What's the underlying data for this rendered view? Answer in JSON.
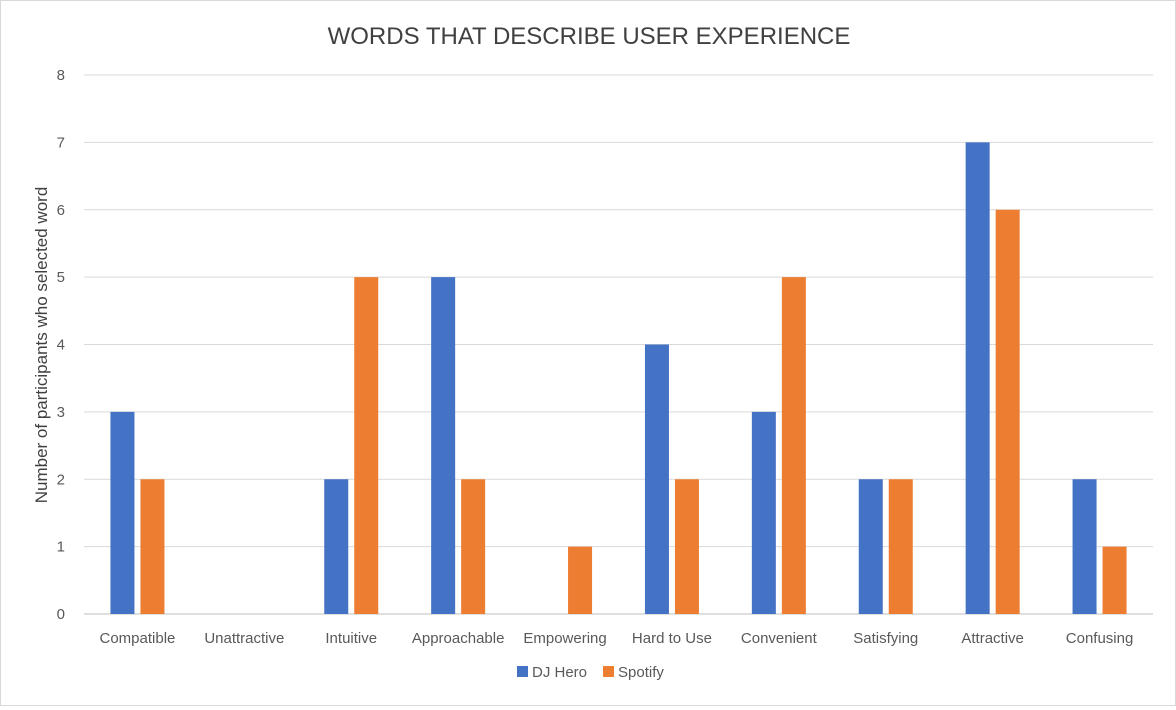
{
  "chart_data": {
    "type": "bar",
    "title": "WORDS THAT DESCRIBE USER EXPERIENCE",
    "xlabel": "",
    "ylabel": "Number of participants who selected word",
    "ylim": [
      0,
      8
    ],
    "yticks": [
      0,
      1,
      2,
      3,
      4,
      5,
      6,
      7,
      8
    ],
    "grid": true,
    "legend_position": "bottom",
    "categories": [
      "Compatible",
      "Unattractive",
      "Intuitive",
      "Approachable",
      "Empowering",
      "Hard to Use",
      "Convenient",
      "Satisfying",
      "Attractive",
      "Confusing"
    ],
    "series": [
      {
        "name": "DJ Hero",
        "color": "#4472C4",
        "values": [
          3,
          0,
          2,
          5,
          0,
          4,
          3,
          2,
          7,
          2
        ]
      },
      {
        "name": "Spotify",
        "color": "#ED7D31",
        "values": [
          2,
          0,
          5,
          2,
          1,
          2,
          5,
          2,
          6,
          1
        ]
      }
    ]
  }
}
